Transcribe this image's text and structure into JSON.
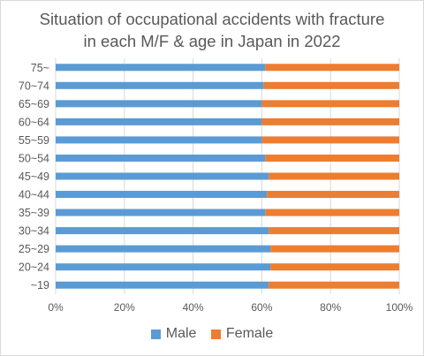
{
  "chart_data": {
    "type": "bar",
    "orientation": "horizontal",
    "stacked": "percent",
    "title_line1": "Situation of occupational accidents with fracture",
    "title_line2": "in each M/F & age in Japan in 2022",
    "categories": [
      "75~",
      "70~74",
      "65~69",
      "60~64",
      "55~59",
      "50~54",
      "45~49",
      "40~44",
      "35~39",
      "30~34",
      "25~29",
      "20~24",
      "~19"
    ],
    "series": [
      {
        "name": "Male",
        "color": "#5b9bd5",
        "values": [
          61,
          60.5,
          60,
          60,
          60,
          61,
          62,
          61.5,
          61,
          62,
          62.5,
          62.5,
          62
        ]
      },
      {
        "name": "Female",
        "color": "#ed7d31",
        "values": [
          39,
          39.5,
          40,
          40,
          40,
          39,
          38,
          38.5,
          39,
          38,
          37.5,
          37.5,
          38
        ]
      }
    ],
    "x_ticks": [
      "0%",
      "20%",
      "40%",
      "60%",
      "80%",
      "100%"
    ],
    "xlim": [
      0,
      100
    ],
    "grid": true,
    "legend_position": "bottom"
  }
}
